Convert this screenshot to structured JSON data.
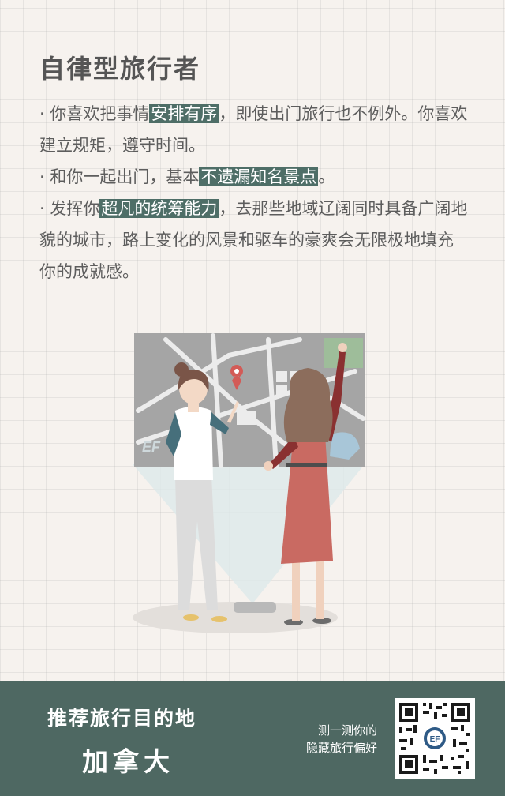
{
  "title": "自律型旅行者",
  "paragraphs": [
    {
      "bullet": "·",
      "pre": "你喜欢把事情",
      "highlight": "安排有序",
      "post": "，即使出门旅行也不例外。你喜欢建立规矩，遵守时间。"
    },
    {
      "bullet": "·",
      "pre": "和你一起出门，基本",
      "highlight": "不遗漏知名景点",
      "post": "。"
    },
    {
      "bullet": "·",
      "pre": "发挥你",
      "highlight": "超凡的统筹能力",
      "post": "，去那些地域辽阔同时具备广阔地貌的城市，路上变化的风景和驱车的豪爽会无限极地填充你的成就感。"
    }
  ],
  "illustration": {
    "logo_text": "EF"
  },
  "footer": {
    "subtitle": "推荐旅行目的地",
    "destination": "加拿大",
    "cta_line1": "测一测你的",
    "cta_line2": "隐藏旅行偏好",
    "qr_center": "EF"
  },
  "colors": {
    "background": "#f6f2ee",
    "accent": "#4e6e67",
    "footer": "#4e6862",
    "text": "#5d5d5d"
  }
}
